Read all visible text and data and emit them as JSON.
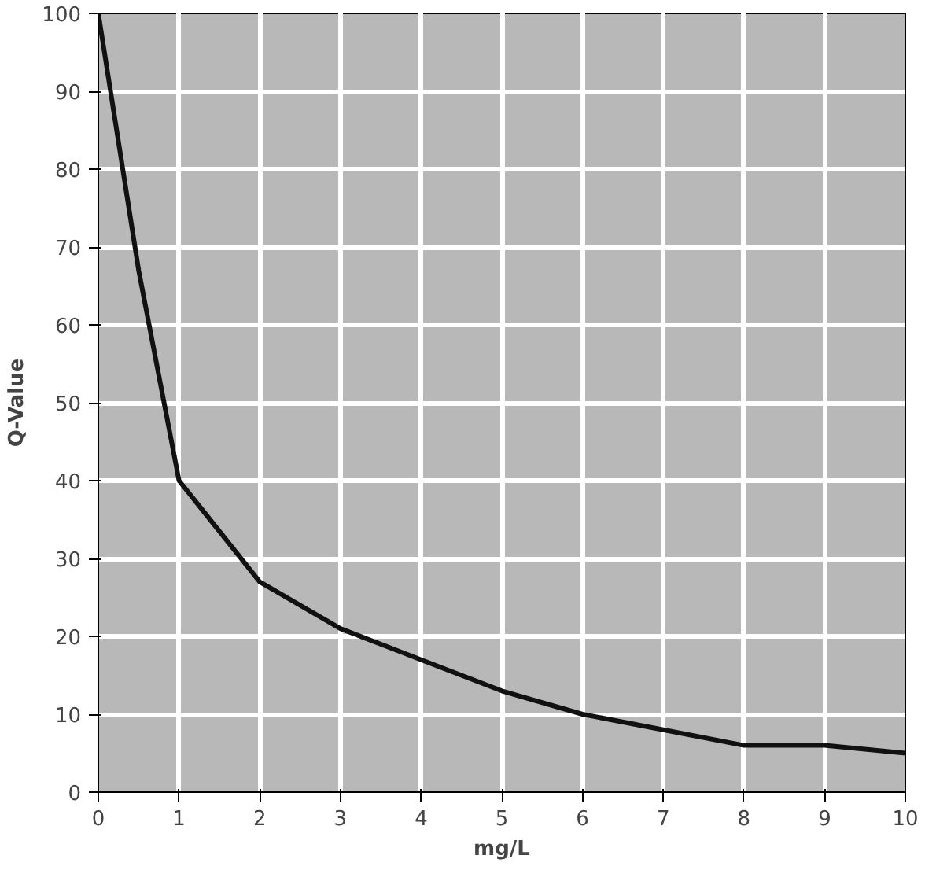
{
  "chart_data": {
    "type": "line",
    "xlabel": "mg/L",
    "ylabel": "Q-Value",
    "x": [
      0,
      0.5,
      1,
      2,
      3,
      4,
      5,
      6,
      7,
      8,
      9,
      10
    ],
    "series": [
      {
        "color": "#111111",
        "values": [
          100,
          67,
          40,
          27,
          21,
          17,
          13,
          10,
          8,
          6,
          6,
          5
        ]
      }
    ],
    "xlim": [
      0,
      10
    ],
    "ylim": [
      0,
      100
    ],
    "xticks": [
      0,
      1,
      2,
      3,
      4,
      5,
      6,
      7,
      8,
      9,
      10
    ],
    "yticks": [
      0,
      10,
      20,
      30,
      40,
      50,
      60,
      70,
      80,
      90,
      100
    ],
    "grid": true,
    "marker": "none",
    "line_style": "solid"
  }
}
